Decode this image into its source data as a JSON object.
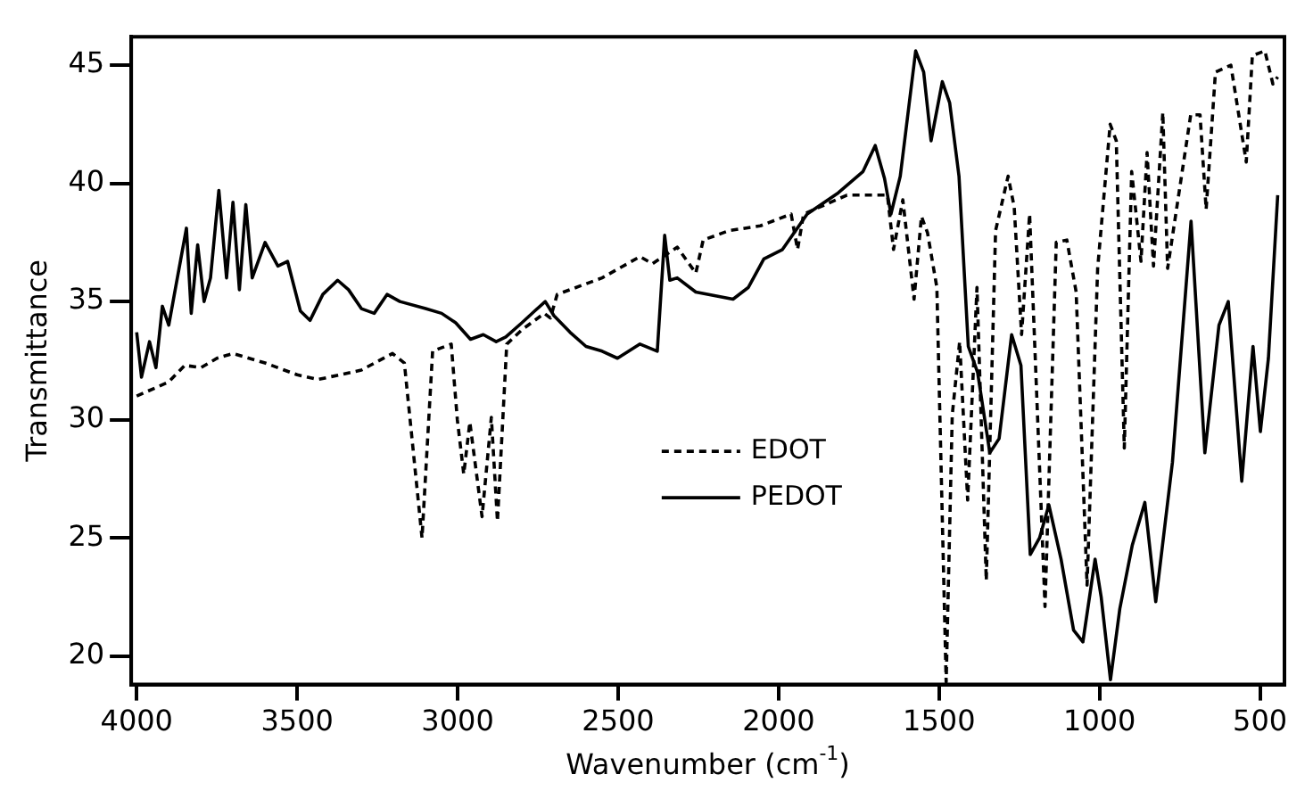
{
  "chart_data": {
    "type": "line",
    "xlabel": "Wavenumber (cm$^{-1}$)",
    "ylabel": "Transmittance",
    "xlim": [
      4017,
      424
    ],
    "xticks": [
      4000,
      3500,
      3000,
      2500,
      2000,
      1500,
      1000,
      500
    ],
    "ylim": [
      18.8,
      46.2
    ],
    "yticks": [
      20,
      25,
      30,
      35,
      40,
      45
    ],
    "grid": false,
    "legend": "center",
    "marker": "none",
    "series": [
      {
        "name": "EDOT",
        "color": "#000000",
        "line_style": "dashed",
        "x": [
          4000,
          3900,
          3850,
          3800,
          3750,
          3700,
          3600,
          3500,
          3435,
          3300,
          3203,
          3166,
          3111,
          3078,
          3020,
          3001,
          2981,
          2962,
          2924,
          2895,
          2876,
          2847,
          2800,
          2730,
          2711,
          2690,
          2550,
          2432,
          2393,
          2316,
          2258,
          2235,
          2154,
          2057,
          1961,
          1941,
          1922,
          1787,
          1661,
          1642,
          1613,
          1578,
          1555,
          1536,
          1507,
          1478,
          1459,
          1436,
          1411,
          1382,
          1353,
          1324,
          1285,
          1266,
          1243,
          1218,
          1170,
          1135,
          1102,
          1073,
          1039,
          1006,
          967,
          948,
          923,
          900,
          871,
          852,
          832,
          803,
          788,
          716,
          687,
          668,
          639,
          591,
          543,
          524,
          485,
          460,
          445
        ],
        "values": [
          31.0,
          31.6,
          32.3,
          32.2,
          32.6,
          32.8,
          32.4,
          31.9,
          31.7,
          32.1,
          32.8,
          32.4,
          25.0,
          32.9,
          33.2,
          30.0,
          27.7,
          29.9,
          25.9,
          30.1,
          25.7,
          33.2,
          33.8,
          34.5,
          34.3,
          35.3,
          36.0,
          36.9,
          36.6,
          37.3,
          36.2,
          37.6,
          38.0,
          38.2,
          38.7,
          37.2,
          38.7,
          39.5,
          39.5,
          37.2,
          39.3,
          35.1,
          38.6,
          37.9,
          35.6,
          18.9,
          30.2,
          33.3,
          26.6,
          35.6,
          23.2,
          38.0,
          40.3,
          39.0,
          33.6,
          38.7,
          22.1,
          37.5,
          37.6,
          35.4,
          23.0,
          36.4,
          42.5,
          41.8,
          28.8,
          40.5,
          36.7,
          41.3,
          36.5,
          43.0,
          36.4,
          42.9,
          42.9,
          38.9,
          44.7,
          45.0,
          40.9,
          45.4,
          45.6,
          44.2,
          44.5
        ]
      },
      {
        "name": "PEDOT",
        "color": "#000000",
        "line_style": "solid",
        "x": [
          4000,
          3985,
          3960,
          3940,
          3920,
          3900,
          3880,
          3845,
          3830,
          3810,
          3790,
          3770,
          3744,
          3720,
          3700,
          3680,
          3660,
          3640,
          3600,
          3560,
          3530,
          3490,
          3460,
          3420,
          3374,
          3340,
          3300,
          3260,
          3220,
          3180,
          3100,
          3050,
          3006,
          2960,
          2920,
          2880,
          2850,
          2800,
          2760,
          2727,
          2700,
          2650,
          2600,
          2550,
          2502,
          2432,
          2378,
          2355,
          2339,
          2316,
          2258,
          2142,
          2094,
          2046,
          1988,
          1911,
          1814,
          1737,
          1699,
          1670,
          1650,
          1621,
          1573,
          1548,
          1525,
          1490,
          1467,
          1438,
          1409,
          1380,
          1342,
          1313,
          1274,
          1245,
          1216,
          1187,
          1158,
          1120,
          1081,
          1052,
          1014,
          995,
          966,
          937,
          898,
          859,
          825,
          773,
          715,
          672,
          628,
          599,
          557,
          522,
          499,
          474,
          445
        ],
        "values": [
          33.7,
          31.8,
          33.3,
          32.2,
          34.8,
          34.0,
          35.5,
          38.1,
          34.5,
          37.4,
          35.0,
          36.0,
          39.7,
          36.0,
          39.2,
          35.5,
          39.1,
          36.0,
          37.5,
          36.5,
          36.7,
          34.6,
          34.2,
          35.3,
          35.9,
          35.5,
          34.7,
          34.5,
          35.3,
          35.0,
          34.7,
          34.5,
          34.1,
          33.4,
          33.6,
          33.3,
          33.5,
          34.1,
          34.6,
          35.0,
          34.4,
          33.7,
          33.1,
          32.9,
          32.6,
          33.2,
          32.9,
          37.8,
          35.9,
          36.0,
          35.4,
          35.1,
          35.6,
          36.8,
          37.2,
          38.7,
          39.6,
          40.5,
          41.6,
          40.2,
          38.7,
          40.3,
          45.6,
          44.7,
          41.8,
          44.3,
          43.4,
          40.3,
          33.1,
          32.0,
          28.6,
          29.2,
          33.6,
          32.3,
          24.3,
          25.0,
          26.4,
          24.1,
          21.1,
          20.6,
          24.1,
          22.5,
          19.0,
          22.0,
          24.7,
          26.5,
          22.3,
          28.2,
          38.4,
          28.6,
          34.0,
          35.0,
          27.4,
          33.1,
          29.5,
          32.6,
          39.5
        ]
      }
    ]
  }
}
